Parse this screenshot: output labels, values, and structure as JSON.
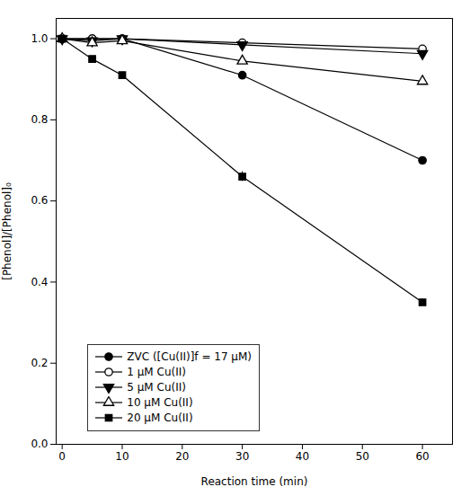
{
  "chart_data": {
    "type": "line",
    "xlabel": "Reaction time (min)",
    "ylabel": "[Phenol]/[Phenol]₀",
    "xlim": [
      -1,
      65
    ],
    "ylim": [
      0.0,
      1.05
    ],
    "xticks": [
      0,
      10,
      20,
      30,
      40,
      50,
      60
    ],
    "yticks": [
      {
        "value": 0.0,
        "label": "0.0"
      },
      0.2,
      0.4,
      0.6,
      0.8,
      {
        "value": 1.0,
        "label": "1.0"
      }
    ],
    "x": [
      0,
      5,
      10,
      30,
      60
    ],
    "series": [
      {
        "name": "ZVC ([Cu(II)]f = 17 μM)",
        "color": "black",
        "marker": "circle",
        "line_style": "solid",
        "values": [
          1.0,
          1.0,
          1.0,
          0.91,
          0.7
        ],
        "yerr": [
          0.003,
          0.003,
          0.003,
          0.005,
          0.005
        ]
      },
      {
        "name": "1 μM Cu(II)",
        "color": "black",
        "marker": "circle-open",
        "line_style": "solid",
        "values": [
          1.0,
          1.0,
          1.0,
          0.99,
          0.975
        ],
        "yerr": [
          0.003,
          0.003,
          0.003,
          0.003,
          0.003
        ]
      },
      {
        "name": "5 μM Cu(II)",
        "color": "black",
        "marker": "triangle-down",
        "line_style": "solid",
        "values": [
          1.0,
          0.995,
          1.0,
          0.985,
          0.963
        ],
        "yerr": [
          0.003,
          0.003,
          0.003,
          0.003,
          0.003
        ]
      },
      {
        "name": "10 μM Cu(II)",
        "color": "black",
        "marker": "triangle-up-open",
        "line_style": "solid",
        "values": [
          1.0,
          0.99,
          0.995,
          0.945,
          0.895
        ],
        "yerr": [
          0.003,
          0.003,
          0.003,
          0.003,
          0.003
        ]
      },
      {
        "name": "20 μM Cu(II)",
        "color": "black",
        "marker": "square",
        "line_style": "solid",
        "values": [
          1.0,
          0.95,
          0.91,
          0.66,
          0.35
        ],
        "yerr": [
          0.003,
          0.003,
          0.008,
          0.012,
          0.008
        ]
      }
    ],
    "legend": "lower left"
  }
}
